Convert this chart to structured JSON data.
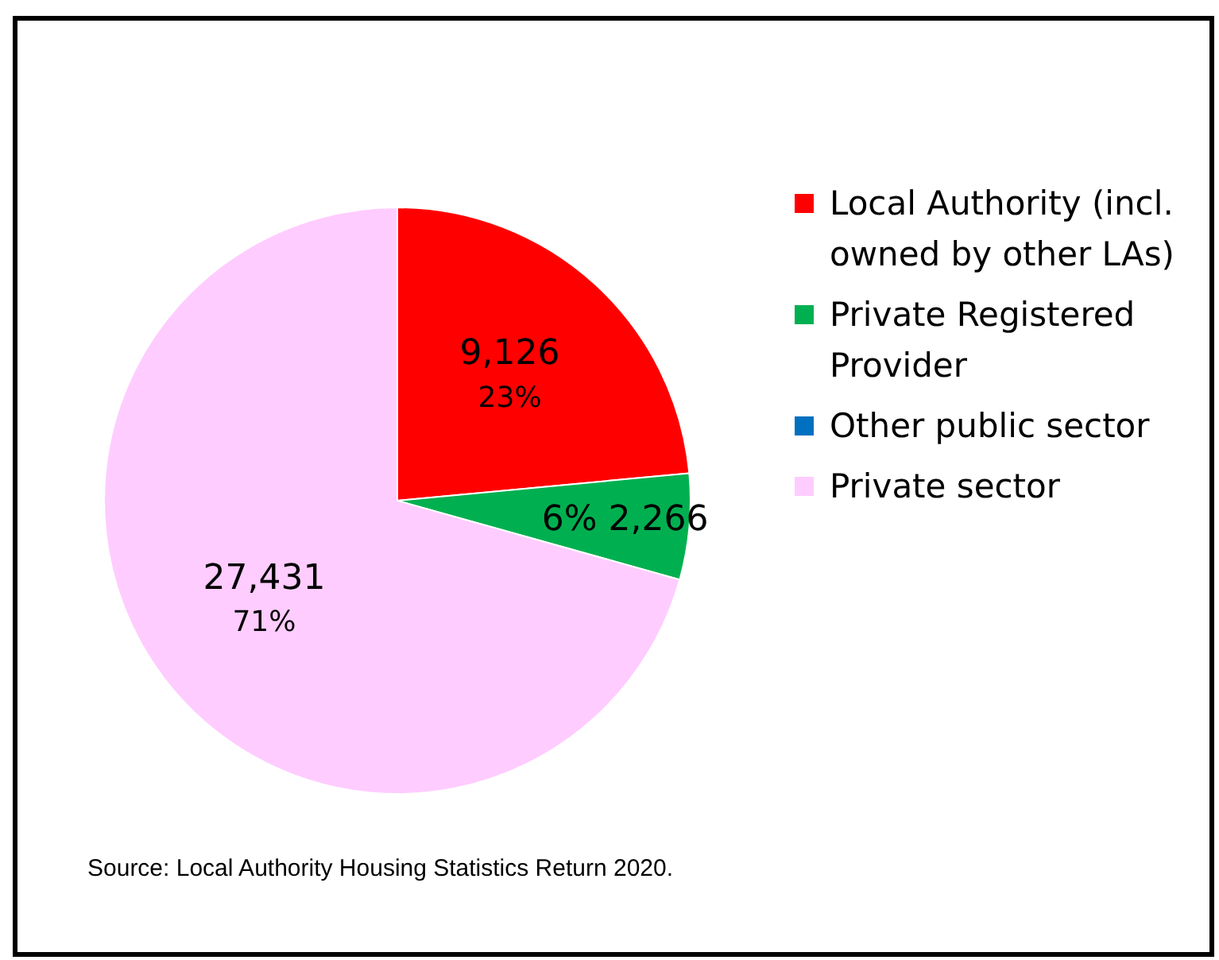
{
  "chart_data": {
    "type": "pie",
    "categories": [
      "Local Authority (incl. owned by other LAs)",
      "Private Registered Provider",
      "Other public sector",
      "Private sector"
    ],
    "values": [
      9126,
      2266,
      0,
      27431
    ],
    "colors": [
      "#ff0000",
      "#00b050",
      "#0070c0",
      "#ffccff"
    ],
    "value_labels": [
      "9,126\n23%",
      "6% 2,266",
      null,
      "27,431\n71%"
    ],
    "legend": "right",
    "annotations": [
      "Source: Local Authority Housing Statistics Return 2020."
    ]
  }
}
